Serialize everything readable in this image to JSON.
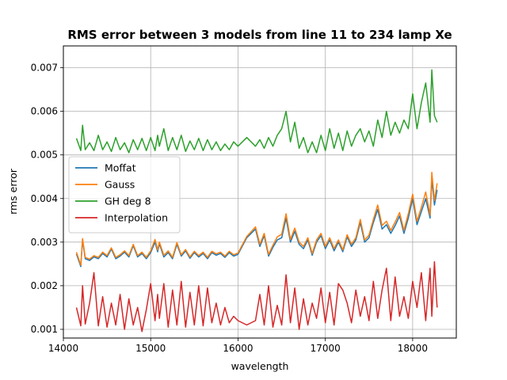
{
  "chart_data": {
    "type": "line",
    "title": "RMS error between 3 models from line 11 to 234 lamp Xe",
    "xlabel": "wavelength",
    "ylabel": "rms error",
    "xlim": [
      14000,
      18500
    ],
    "ylim": [
      0.0008,
      0.0075
    ],
    "grid": true,
    "legend_position": "center-left",
    "xticks": [
      14000,
      15000,
      16000,
      17000,
      18000
    ],
    "xtick_labels": [
      "14000",
      "15000",
      "16000",
      "17000",
      "18000"
    ],
    "yticks": [
      0.001,
      0.002,
      0.003,
      0.004,
      0.005,
      0.006,
      0.007
    ],
    "ytick_labels": [
      "0.001",
      "0.002",
      "0.003",
      "0.004",
      "0.005",
      "0.006",
      "0.007"
    ],
    "series": [
      {
        "name": "Moffat",
        "color": "#1f77b4",
        "x": [
          14150,
          14200,
          14220,
          14250,
          14300,
          14350,
          14400,
          14450,
          14500,
          14550,
          14600,
          14650,
          14700,
          14750,
          14800,
          14850,
          14900,
          14950,
          15000,
          15050,
          15080,
          15100,
          15150,
          15200,
          15250,
          15300,
          15350,
          15400,
          15450,
          15500,
          15550,
          15600,
          15650,
          15700,
          15750,
          15800,
          15850,
          15900,
          15950,
          16000,
          16100,
          16200,
          16250,
          16300,
          16350,
          16400,
          16450,
          16500,
          16550,
          16600,
          16650,
          16700,
          16750,
          16800,
          16850,
          16900,
          16950,
          17000,
          17050,
          17100,
          17150,
          17200,
          17250,
          17300,
          17350,
          17400,
          17450,
          17500,
          17550,
          17600,
          17650,
          17700,
          17750,
          17800,
          17850,
          17900,
          17950,
          18000,
          18050,
          18100,
          18150,
          18200,
          18220,
          18250,
          18280
        ],
        "values": [
          0.00273,
          0.00244,
          0.00305,
          0.00262,
          0.00258,
          0.00266,
          0.00262,
          0.00274,
          0.00266,
          0.00284,
          0.00262,
          0.00268,
          0.00277,
          0.00266,
          0.00292,
          0.00266,
          0.00274,
          0.00262,
          0.00276,
          0.003,
          0.00278,
          0.00296,
          0.00266,
          0.00276,
          0.00262,
          0.00295,
          0.00268,
          0.0028,
          0.00263,
          0.00276,
          0.00266,
          0.00274,
          0.00262,
          0.00276,
          0.0027,
          0.00274,
          0.00265,
          0.00276,
          0.00268,
          0.00272,
          0.0031,
          0.0033,
          0.0029,
          0.00315,
          0.00268,
          0.00288,
          0.00305,
          0.0031,
          0.00355,
          0.003,
          0.00325,
          0.00295,
          0.00285,
          0.00305,
          0.0027,
          0.003,
          0.00315,
          0.00285,
          0.00305,
          0.0028,
          0.003,
          0.00278,
          0.00312,
          0.0029,
          0.00305,
          0.00345,
          0.003,
          0.0031,
          0.00345,
          0.00375,
          0.0033,
          0.0034,
          0.0032,
          0.00338,
          0.0036,
          0.0032,
          0.00355,
          0.004,
          0.0034,
          0.0037,
          0.004,
          0.00355,
          0.00445,
          0.00385,
          0.0042
        ]
      },
      {
        "name": "Gauss",
        "color": "#ff7f0e",
        "x": [
          14150,
          14200,
          14220,
          14250,
          14300,
          14350,
          14400,
          14450,
          14500,
          14550,
          14600,
          14650,
          14700,
          14750,
          14800,
          14850,
          14900,
          14950,
          15000,
          15050,
          15080,
          15100,
          15150,
          15200,
          15250,
          15300,
          15350,
          15400,
          15450,
          15500,
          15550,
          15600,
          15650,
          15700,
          15750,
          15800,
          15850,
          15900,
          15950,
          16000,
          16100,
          16200,
          16250,
          16300,
          16350,
          16400,
          16450,
          16500,
          16550,
          16600,
          16650,
          16700,
          16750,
          16800,
          16850,
          16900,
          16950,
          17000,
          17050,
          17100,
          17150,
          17200,
          17250,
          17300,
          17350,
          17400,
          17450,
          17500,
          17550,
          17600,
          17650,
          17700,
          17750,
          17800,
          17850,
          17900,
          17950,
          18000,
          18050,
          18100,
          18150,
          18200,
          18220,
          18250,
          18280
        ],
        "values": [
          0.00277,
          0.00247,
          0.00308,
          0.00265,
          0.00261,
          0.00269,
          0.00265,
          0.00277,
          0.00269,
          0.00287,
          0.00265,
          0.00271,
          0.0028,
          0.00269,
          0.00295,
          0.00269,
          0.00277,
          0.00265,
          0.0028,
          0.00306,
          0.00282,
          0.003,
          0.0027,
          0.0028,
          0.00265,
          0.00299,
          0.00271,
          0.00283,
          0.00266,
          0.00279,
          0.00269,
          0.00277,
          0.00265,
          0.00279,
          0.00273,
          0.00277,
          0.00268,
          0.00279,
          0.00271,
          0.00275,
          0.00313,
          0.00335,
          0.00295,
          0.0032,
          0.00272,
          0.00293,
          0.00312,
          0.00318,
          0.00365,
          0.00306,
          0.00332,
          0.003,
          0.0029,
          0.0031,
          0.00274,
          0.00305,
          0.0032,
          0.0029,
          0.0031,
          0.00285,
          0.00305,
          0.00282,
          0.00317,
          0.00295,
          0.0031,
          0.00352,
          0.00305,
          0.00316,
          0.00352,
          0.00385,
          0.00338,
          0.00348,
          0.00327,
          0.00346,
          0.00368,
          0.00327,
          0.00365,
          0.0041,
          0.00348,
          0.0038,
          0.00415,
          0.00362,
          0.0046,
          0.00395,
          0.00435
        ]
      },
      {
        "name": "GH deg 8",
        "color": "#2ca02c",
        "x": [
          14150,
          14200,
          14220,
          14250,
          14300,
          14350,
          14400,
          14450,
          14500,
          14550,
          14600,
          14650,
          14700,
          14750,
          14800,
          14850,
          14900,
          14950,
          15000,
          15050,
          15080,
          15100,
          15150,
          15200,
          15250,
          15300,
          15350,
          15400,
          15450,
          15500,
          15550,
          15600,
          15650,
          15700,
          15750,
          15800,
          15850,
          15900,
          15950,
          16000,
          16100,
          16200,
          16250,
          16300,
          16350,
          16400,
          16450,
          16500,
          16550,
          16600,
          16650,
          16700,
          16750,
          16800,
          16850,
          16900,
          16950,
          17000,
          17050,
          17100,
          17150,
          17200,
          17250,
          17300,
          17350,
          17400,
          17450,
          17500,
          17550,
          17600,
          17650,
          17700,
          17750,
          17800,
          17850,
          17900,
          17950,
          18000,
          18050,
          18100,
          18150,
          18200,
          18220,
          18250,
          18280
        ],
        "values": [
          0.00538,
          0.0051,
          0.00568,
          0.00512,
          0.00528,
          0.0051,
          0.00545,
          0.00512,
          0.0053,
          0.00508,
          0.0054,
          0.00512,
          0.00528,
          0.00505,
          0.00535,
          0.00512,
          0.00538,
          0.0051,
          0.0054,
          0.0051,
          0.00545,
          0.0052,
          0.0056,
          0.0051,
          0.0054,
          0.00512,
          0.00545,
          0.00508,
          0.00532,
          0.00512,
          0.00538,
          0.0051,
          0.00535,
          0.00512,
          0.0053,
          0.0051,
          0.00525,
          0.00512,
          0.0053,
          0.0052,
          0.0054,
          0.0052,
          0.00535,
          0.00515,
          0.0054,
          0.0052,
          0.00545,
          0.0056,
          0.006,
          0.0053,
          0.00575,
          0.00515,
          0.0054,
          0.00505,
          0.0053,
          0.00505,
          0.00545,
          0.0051,
          0.0056,
          0.00515,
          0.0055,
          0.0051,
          0.00555,
          0.0052,
          0.00545,
          0.0056,
          0.0053,
          0.00555,
          0.0052,
          0.0058,
          0.0054,
          0.006,
          0.00545,
          0.00575,
          0.0055,
          0.0058,
          0.0056,
          0.0064,
          0.0056,
          0.0062,
          0.00665,
          0.00575,
          0.00695,
          0.0059,
          0.00575
        ]
      },
      {
        "name": "Interpolation",
        "color": "#d62728",
        "x": [
          14150,
          14200,
          14220,
          14250,
          14300,
          14350,
          14400,
          14450,
          14500,
          14550,
          14600,
          14650,
          14700,
          14750,
          14800,
          14850,
          14900,
          14950,
          15000,
          15050,
          15080,
          15100,
          15150,
          15200,
          15250,
          15300,
          15350,
          15400,
          15450,
          15500,
          15550,
          15600,
          15650,
          15700,
          15750,
          15800,
          15850,
          15900,
          15950,
          16000,
          16100,
          16200,
          16250,
          16300,
          16350,
          16400,
          16450,
          16500,
          16550,
          16600,
          16650,
          16700,
          16750,
          16800,
          16850,
          16900,
          16950,
          17000,
          17050,
          17100,
          17150,
          17200,
          17250,
          17300,
          17350,
          17400,
          17450,
          17500,
          17550,
          17600,
          17650,
          17700,
          17750,
          17800,
          17850,
          17900,
          17950,
          18000,
          18050,
          18100,
          18150,
          18200,
          18220,
          18250,
          18280
        ],
        "values": [
          0.0015,
          0.00108,
          0.002,
          0.00112,
          0.0016,
          0.0023,
          0.00108,
          0.00175,
          0.00105,
          0.0016,
          0.0011,
          0.0018,
          0.001,
          0.0017,
          0.0011,
          0.0015,
          0.00095,
          0.00145,
          0.00205,
          0.0012,
          0.0018,
          0.00125,
          0.00205,
          0.00105,
          0.0019,
          0.0011,
          0.0021,
          0.00105,
          0.00185,
          0.0011,
          0.002,
          0.00108,
          0.00195,
          0.00115,
          0.0016,
          0.0011,
          0.0015,
          0.00115,
          0.0013,
          0.0012,
          0.0011,
          0.0012,
          0.0018,
          0.0011,
          0.002,
          0.00105,
          0.00155,
          0.0011,
          0.00225,
          0.00115,
          0.00195,
          0.001,
          0.0017,
          0.0011,
          0.0016,
          0.00125,
          0.00195,
          0.00115,
          0.00185,
          0.0011,
          0.00205,
          0.0019,
          0.0016,
          0.00115,
          0.0019,
          0.0013,
          0.00175,
          0.0012,
          0.0021,
          0.00125,
          0.0019,
          0.0024,
          0.0012,
          0.0022,
          0.0013,
          0.00175,
          0.00125,
          0.0021,
          0.0015,
          0.0023,
          0.0012,
          0.0024,
          0.0013,
          0.00255,
          0.0015
        ]
      }
    ]
  }
}
